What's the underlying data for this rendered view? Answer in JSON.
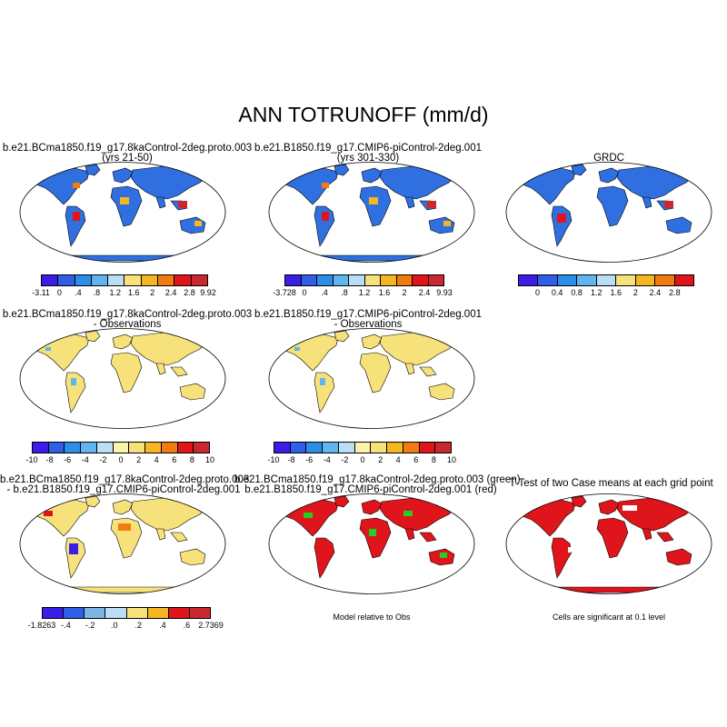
{
  "main_title": "ANN TOTRUNOFF (mm/d)",
  "panels": {
    "p1": {
      "title1": "b.e21.BCma1850.f19_g17.8kaControl-2deg.proto.003",
      "title2": "(yrs 21-50)"
    },
    "p2": {
      "title1": "b.e21.B1850.f19_g17.CMIP6-piControl-2deg.001",
      "title2": "(yrs 301-330)"
    },
    "p3": {
      "title1": "GRDC"
    },
    "p4": {
      "title1": "b.e21.BCma1850.f19_g17.8kaControl-2deg.proto.003",
      "title2": "- Observations"
    },
    "p5": {
      "title1": "b.e21.B1850.f19_g17.CMIP6-piControl-2deg.001",
      "title2": "- Observations"
    },
    "p7": {
      "title1": "b.e21.BCma1850.f19_g17.8kaControl-2deg.proto.003",
      "title2": "- b.e21.B1850.f19_g17.CMIP6-piControl-2deg.001"
    },
    "p8": {
      "title1": "b.e21.BCma1850.f19_g17.8kaControl-2deg.proto.003 (green)",
      "title2": "b.e21.B1850.f19_g17.CMIP6-piControl-2deg.001 (red)",
      "note": "Model relative to Obs"
    },
    "p9": {
      "title1": "T-Test of two Case means at each grid point",
      "note": "Cells are significant at 0.1 level"
    }
  },
  "colorbars": {
    "cb1": {
      "labels": [
        "-3.11",
        "0",
        ".4",
        ".8",
        "1.2",
        "1.6",
        "2",
        "2.4",
        "2.8",
        "9.92"
      ]
    },
    "cb2": {
      "labels": [
        "-3.728",
        "0",
        ".4",
        ".8",
        "1.2",
        "1.6",
        "2",
        "2.4",
        "9.93"
      ]
    },
    "cb3": {
      "labels": [
        "0",
        "0.4",
        "0.8",
        "1.2",
        "1.6",
        "2",
        "2.4",
        "2.8"
      ]
    },
    "cb4": {
      "labels": [
        "-10",
        "-8",
        "-6",
        "-4",
        "-2",
        "0",
        "2",
        "4",
        "6",
        "8",
        "10"
      ]
    },
    "cb5": {
      "labels": [
        "-10",
        "-8",
        "-6",
        "-4",
        "-2",
        "0",
        "2",
        "4",
        "6",
        "8",
        "10"
      ]
    },
    "cb7": {
      "labels": [
        "-1.8263",
        "-.4",
        "-.2",
        ".0",
        ".2",
        ".4",
        ".6",
        "2.7369"
      ]
    }
  },
  "palettes": {
    "runoff": [
      "#3a1ee8",
      "#2f5fe6",
      "#2c8ee8",
      "#5fb6ee",
      "#b9def6",
      "#f6e17a",
      "#f4b623",
      "#f07b10",
      "#e0151b",
      "#c9282e"
    ],
    "diff": [
      "#3a1ee8",
      "#2f5fe6",
      "#2c8ee8",
      "#5fb6ee",
      "#b9def6",
      "#fbf3aa",
      "#f6e17a",
      "#f4b623",
      "#f07b10",
      "#e0151b",
      "#c9282e"
    ],
    "diff2": [
      "#3a1ee8",
      "#2f5fe6",
      "#7cb6e6",
      "#b9def6",
      "#f6e17a",
      "#f4b623",
      "#e0151b",
      "#c9282e"
    ],
    "land_base": "#2f6fe0",
    "obs_diff_land": "#f6e17a",
    "sig_red": "#e0151b",
    "model_green": "#22d022"
  }
}
